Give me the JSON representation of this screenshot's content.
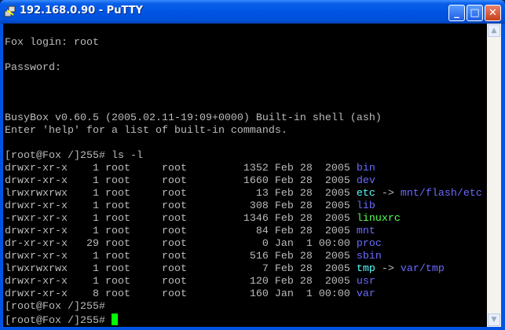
{
  "window": {
    "title": "192.168.0.90 - PuTTY",
    "minimize": "_",
    "maximize": "□",
    "close": "✕"
  },
  "colors": {
    "text": "#bbbbbb",
    "dir": "#6b6bff",
    "link": "#55ffff",
    "exec": "#55ff55",
    "cursor": "#00ff00"
  },
  "terminal": {
    "lines": [
      [],
      [
        {
          "t": "Fox login: root"
        }
      ],
      [],
      [
        {
          "t": "Password:"
        }
      ],
      [],
      [],
      [],
      [
        {
          "t": "BusyBox v0.60.5 (2005.02.11-19:09+0000) Built-in shell (ash)"
        }
      ],
      [
        {
          "t": "Enter 'help' for a list of built-in commands."
        }
      ],
      [],
      [
        {
          "t": "[root@Fox /]255# ls -l"
        }
      ],
      [
        {
          "t": "drwxr-xr-x    1 root     root         1352 Feb 28  2005 "
        },
        {
          "t": "bin",
          "c": "dir"
        }
      ],
      [
        {
          "t": "drwxr-xr-x    1 root     root         1660 Feb 28  2005 "
        },
        {
          "t": "dev",
          "c": "dir"
        }
      ],
      [
        {
          "t": "lrwxrwxrwx    1 root     root           13 Feb 28  2005 "
        },
        {
          "t": "etc",
          "c": "link"
        },
        {
          "t": " -> "
        },
        {
          "t": "mnt/flash/etc",
          "c": "dir"
        }
      ],
      [
        {
          "t": "drwxr-xr-x    1 root     root          308 Feb 28  2005 "
        },
        {
          "t": "lib",
          "c": "dir"
        }
      ],
      [
        {
          "t": "-rwxr-xr-x    1 root     root         1346 Feb 28  2005 "
        },
        {
          "t": "linuxrc",
          "c": "exec"
        }
      ],
      [
        {
          "t": "drwxr-xr-x    1 root     root           84 Feb 28  2005 "
        },
        {
          "t": "mnt",
          "c": "dir"
        }
      ],
      [
        {
          "t": "dr-xr-xr-x   29 root     root            0 Jan  1 00:00 "
        },
        {
          "t": "proc",
          "c": "dir"
        }
      ],
      [
        {
          "t": "drwxr-xr-x    1 root     root          516 Feb 28  2005 "
        },
        {
          "t": "sbin",
          "c": "dir"
        }
      ],
      [
        {
          "t": "lrwxrwxrwx    1 root     root            7 Feb 28  2005 "
        },
        {
          "t": "tmp",
          "c": "link"
        },
        {
          "t": " -> "
        },
        {
          "t": "var/tmp",
          "c": "dir"
        }
      ],
      [
        {
          "t": "drwxr-xr-x    1 root     root          120 Feb 28  2005 "
        },
        {
          "t": "usr",
          "c": "dir"
        }
      ],
      [
        {
          "t": "drwxr-xr-x    8 root     root          160 Jan  1 00:00 "
        },
        {
          "t": "var",
          "c": "dir"
        }
      ],
      [
        {
          "t": "[root@Fox /]255#"
        }
      ],
      [
        {
          "t": "[root@Fox /]255# "
        },
        {
          "cursor": true
        }
      ]
    ]
  }
}
